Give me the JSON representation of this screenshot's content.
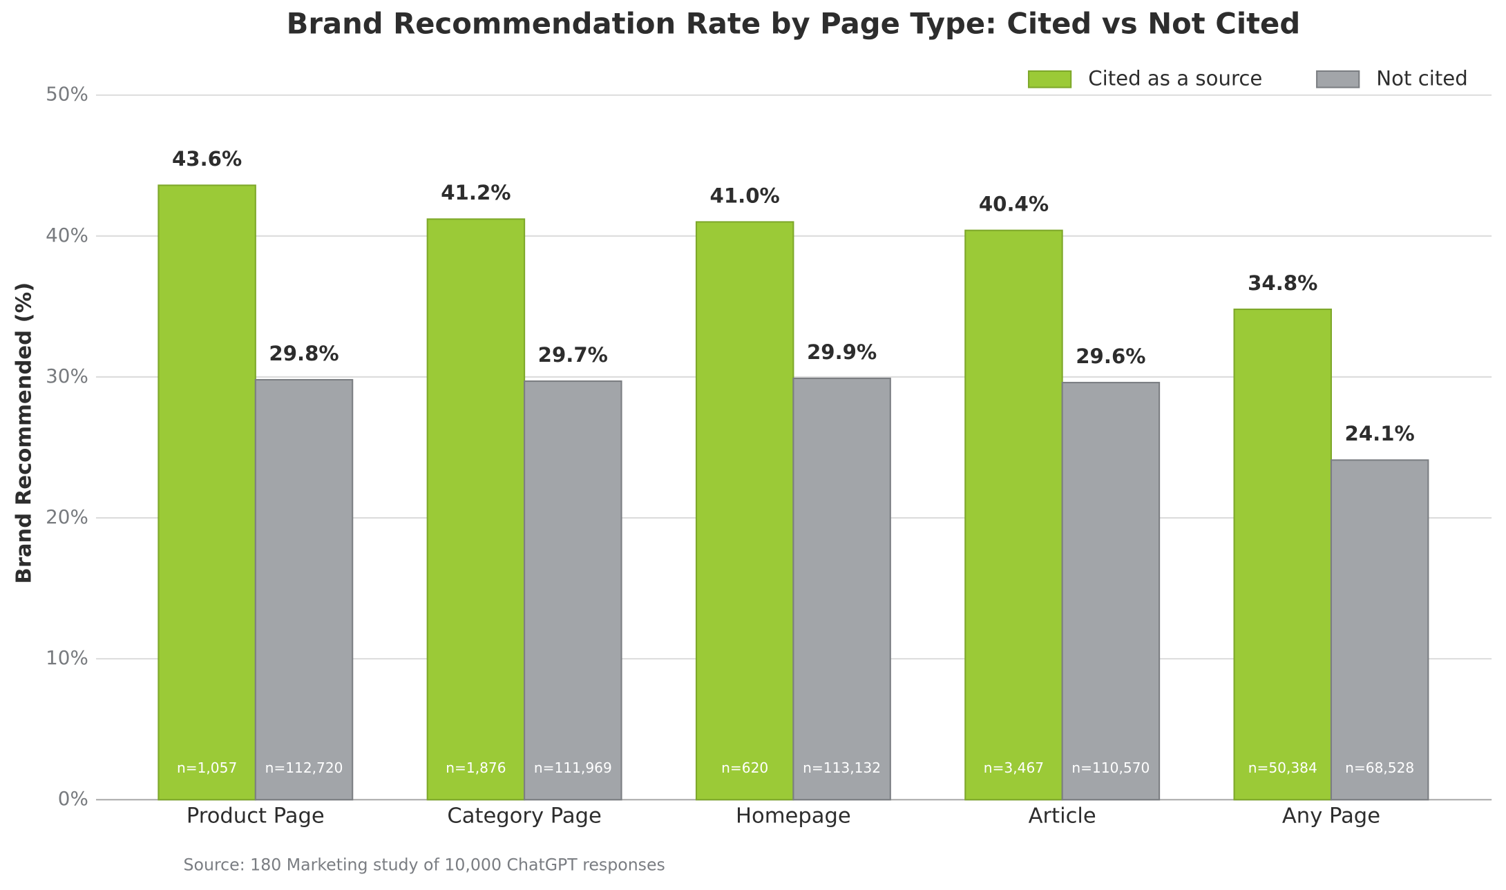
{
  "chart_data": {
    "type": "bar",
    "title": "Brand Recommendation Rate by Page Type: Cited vs Not Cited",
    "y_label": "Brand Recommended (%)",
    "source": "Source: 180 Marketing study of 10,000 ChatGPT responses",
    "categories": [
      "Product Page",
      "Category Page",
      "Homepage",
      "Article",
      "Any Page"
    ],
    "series": [
      {
        "name": "Cited as a source",
        "color": "#9bca37",
        "edge": "#7ea82a",
        "values": [
          43.6,
          41.2,
          41.0,
          40.4,
          34.8
        ],
        "value_labels": [
          "43.6%",
          "41.2%",
          "41.0%",
          "40.4%",
          "34.8%"
        ],
        "n_labels": [
          "n=1,057",
          "n=1,876",
          "n=620",
          "n=3,467",
          "n=50,384"
        ]
      },
      {
        "name": "Not cited",
        "color": "#a2a5a9",
        "edge": "#7b7e82",
        "values": [
          29.8,
          29.7,
          29.9,
          29.6,
          24.1
        ],
        "value_labels": [
          "29.8%",
          "29.7%",
          "29.9%",
          "29.6%",
          "24.1%"
        ],
        "n_labels": [
          "n=112,720",
          "n=111,969",
          "n=113,132",
          "n=110,570",
          "n=68,528"
        ]
      }
    ],
    "ylim": [
      0,
      50
    ],
    "yticks": [
      {
        "value": 0,
        "label": "0%"
      },
      {
        "value": 10,
        "label": "10%"
      },
      {
        "value": 20,
        "label": "20%"
      },
      {
        "value": 30,
        "label": "30%"
      },
      {
        "value": 40,
        "label": "40%"
      },
      {
        "value": 50,
        "label": "50%"
      }
    ],
    "grid": true,
    "legend": "upper right"
  }
}
